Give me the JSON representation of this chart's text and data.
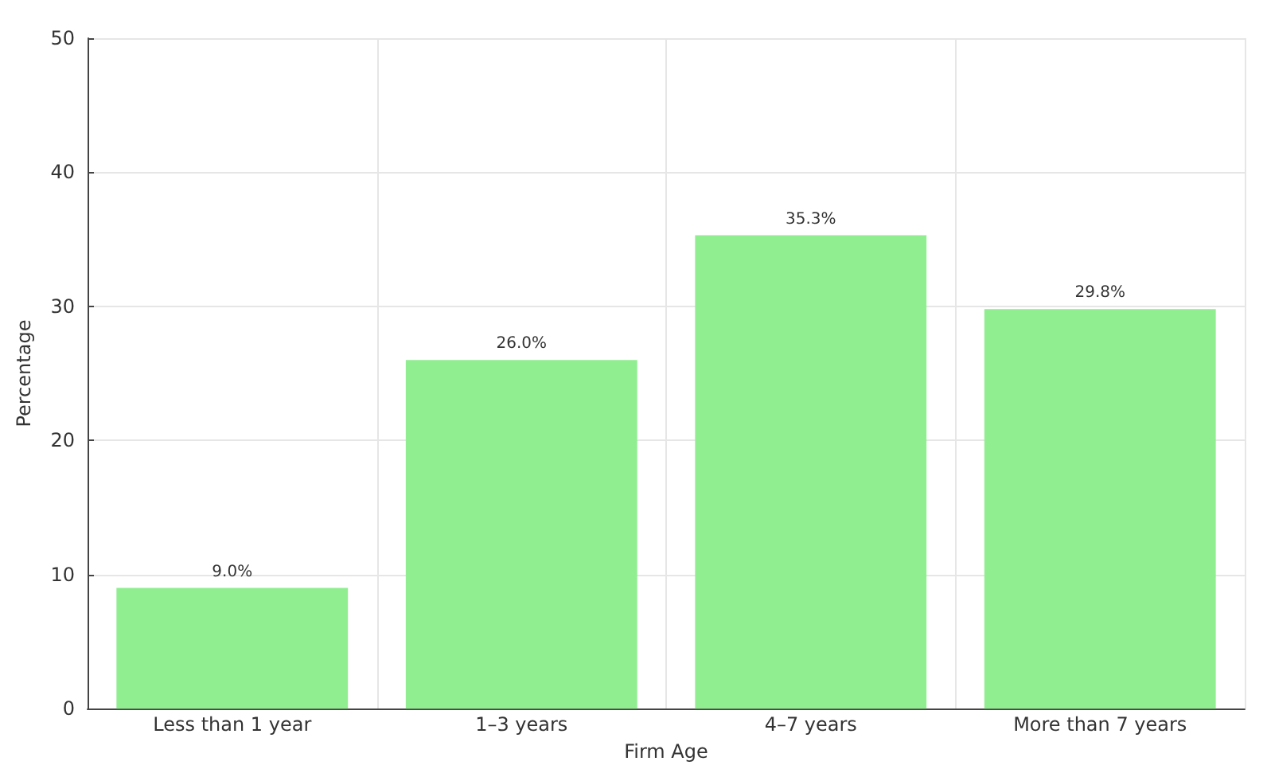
{
  "chart_data": {
    "type": "bar",
    "xlabel": "Firm Age",
    "ylabel": "Percentage",
    "categories": [
      "Less than 1 year",
      "1–3 years",
      "4–7 years",
      "More than 7 years"
    ],
    "values": [
      9.0,
      26.0,
      35.3,
      29.8
    ],
    "color": "#90ee90",
    "value_labels": [
      "9.0%",
      "26.0%",
      "35.3%",
      "29.8%"
    ],
    "ylim": [
      0,
      50
    ],
    "yticks": [
      0,
      10,
      20,
      30,
      40,
      50
    ],
    "grid": true
  }
}
